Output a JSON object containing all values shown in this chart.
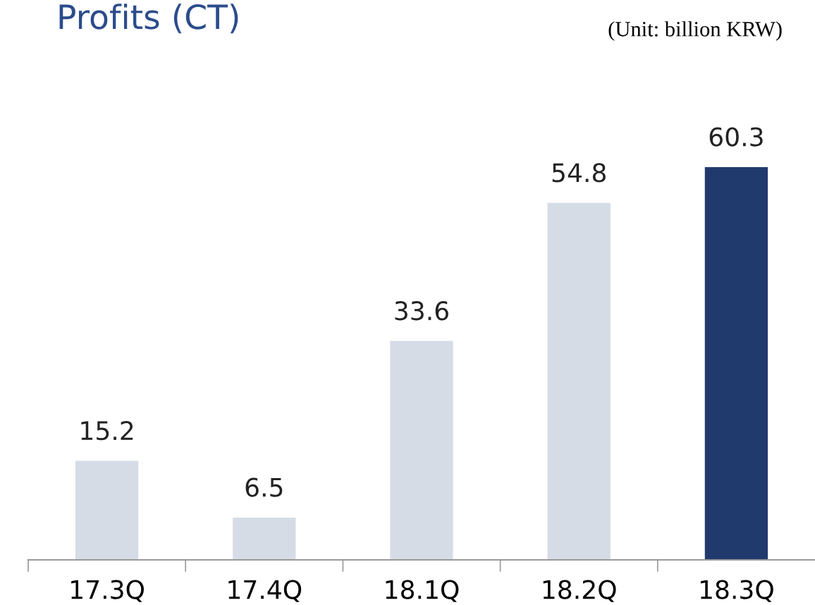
{
  "chart_data": {
    "type": "bar",
    "title": "Profits (CT)",
    "annotations": [
      "(Unit: billion KRW)"
    ],
    "categories": [
      "17.3Q",
      "17.4Q",
      "18.1Q",
      "18.2Q",
      "18.3Q"
    ],
    "values": [
      15.2,
      6.5,
      33.6,
      54.8,
      60.3
    ],
    "colors": [
      "#d5dce6",
      "#d5dce6",
      "#d5dce6",
      "#d5dce6",
      "#213a6e"
    ],
    "data_labels": true,
    "grid": false,
    "legend": false
  }
}
